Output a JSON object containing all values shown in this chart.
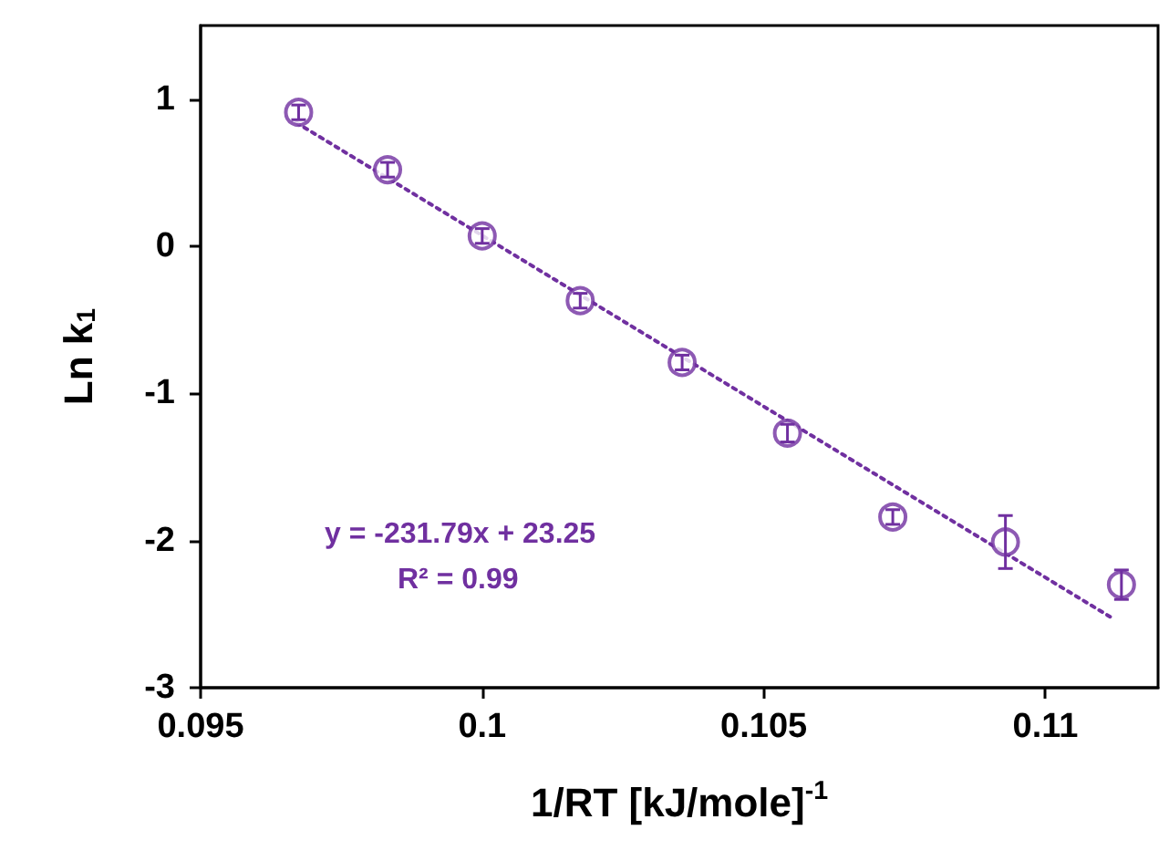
{
  "chart_data": {
    "type": "scatter",
    "xlabel": "1/RT [kJ/mole]$^{-1}$",
    "ylabel": "Ln k$_{1}$",
    "annotations": [
      "y = -231.79x + 23.25",
      "R² = 0.99"
    ],
    "xlim": [
      0.095,
      0.112
    ],
    "xticks": [
      0.095,
      0.1,
      0.105,
      0.11
    ],
    "ylim": [
      -3,
      1.5
    ],
    "yticks": [
      -3,
      -2,
      -1,
      0,
      1
    ],
    "series": [
      {
        "color": "#7030a0",
        "marker": "circle",
        "x": [
          0.09674,
          0.09832,
          0.1,
          0.10174,
          0.10355,
          0.10542,
          0.10729,
          0.10929,
          0.11135
        ],
        "values": [
          0.91,
          0.52,
          0.07,
          -0.37,
          -0.79,
          -1.27,
          -1.84,
          -2.01,
          -2.3
        ],
        "errors": [
          0.05,
          0.05,
          0.05,
          0.05,
          0.05,
          0.06,
          0.05,
          0.18,
          0.1
        ]
      },
      {
        "type": "line",
        "color": "#7030a0",
        "marker": "none",
        "line_style": "dotted",
        "x": [
          0.0967,
          0.1112
        ],
        "values": [
          0.84,
          -2.53
        ]
      }
    ]
  }
}
